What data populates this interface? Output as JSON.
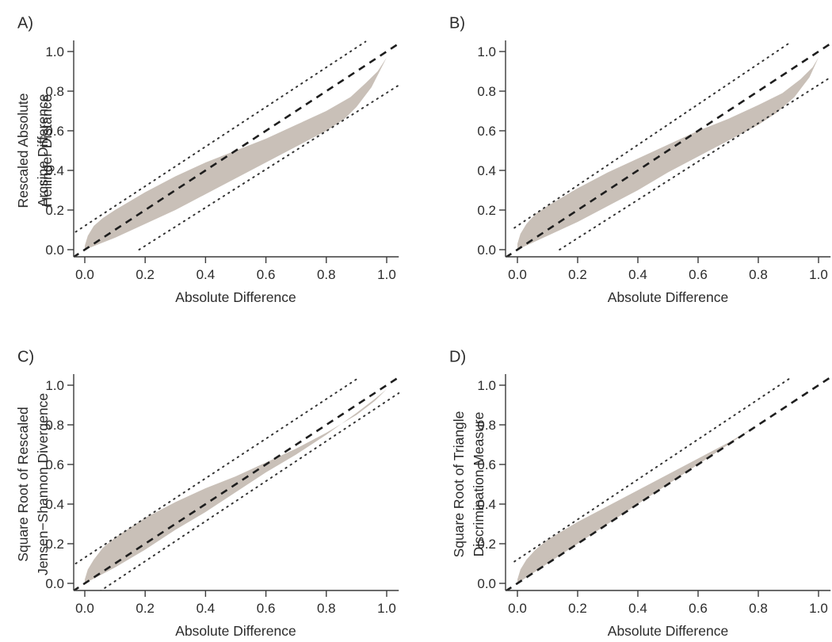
{
  "chart_data": [
    {
      "panel": "A)",
      "type": "area",
      "xlabel": "Absolute Difference",
      "ylabel_lines": [
        "Rescaled Absolute",
        "Arcsine Difference"
      ],
      "xlim": [
        -0.04,
        1.04
      ],
      "ylim": [
        -0.04,
        1.04
      ],
      "xticks": [
        "0.0",
        "0.2",
        "0.4",
        "0.6",
        "0.8",
        "1.0"
      ],
      "yticks": [
        "0.0",
        "0.2",
        "0.4",
        "0.6",
        "0.8",
        "1.0"
      ],
      "band_upper": [
        [
          0,
          0.02
        ],
        [
          0.01,
          0.07
        ],
        [
          0.03,
          0.12
        ],
        [
          0.06,
          0.16
        ],
        [
          0.1,
          0.2
        ],
        [
          0.2,
          0.29
        ],
        [
          0.3,
          0.37
        ],
        [
          0.4,
          0.44
        ],
        [
          0.5,
          0.5
        ],
        [
          0.6,
          0.56
        ],
        [
          0.7,
          0.63
        ],
        [
          0.8,
          0.7
        ],
        [
          0.88,
          0.77
        ],
        [
          0.93,
          0.84
        ],
        [
          0.97,
          0.9
        ],
        [
          1.0,
          0.97
        ]
      ],
      "band_lower": [
        [
          0,
          0
        ],
        [
          0.1,
          0.06
        ],
        [
          0.2,
          0.13
        ],
        [
          0.3,
          0.2
        ],
        [
          0.4,
          0.28
        ],
        [
          0.5,
          0.36
        ],
        [
          0.6,
          0.44
        ],
        [
          0.7,
          0.52
        ],
        [
          0.8,
          0.6
        ],
        [
          0.86,
          0.66
        ],
        [
          0.9,
          0.72
        ],
        [
          0.95,
          0.82
        ],
        [
          1.0,
          0.97
        ]
      ],
      "identity_line": {
        "x": [
          -0.04,
          1.04
        ],
        "y": [
          -0.04,
          1.04
        ]
      },
      "upper_bound": {
        "x": [
          -0.03,
          0.93
        ],
        "y": [
          0.09,
          1.05
        ]
      },
      "lower_bound": {
        "x": [
          0.18,
          1.04
        ],
        "y": [
          0.0,
          0.83
        ]
      }
    },
    {
      "panel": "B)",
      "type": "area",
      "xlabel": "Absolute Difference",
      "ylabel_lines": [
        "Hellinger Distance"
      ],
      "xlim": [
        -0.04,
        1.04
      ],
      "ylim": [
        -0.04,
        1.04
      ],
      "xticks": [
        "0.0",
        "0.2",
        "0.4",
        "0.6",
        "0.8",
        "1.0"
      ],
      "yticks": [
        "0.0",
        "0.2",
        "0.4",
        "0.6",
        "0.8",
        "1.0"
      ],
      "band_upper": [
        [
          0,
          0.03
        ],
        [
          0.01,
          0.08
        ],
        [
          0.03,
          0.13
        ],
        [
          0.06,
          0.18
        ],
        [
          0.1,
          0.22
        ],
        [
          0.2,
          0.31
        ],
        [
          0.3,
          0.39
        ],
        [
          0.4,
          0.46
        ],
        [
          0.5,
          0.53
        ],
        [
          0.6,
          0.6
        ],
        [
          0.7,
          0.66
        ],
        [
          0.8,
          0.73
        ],
        [
          0.88,
          0.79
        ],
        [
          0.94,
          0.86
        ],
        [
          0.98,
          0.92
        ],
        [
          1.0,
          0.97
        ]
      ],
      "band_lower": [
        [
          0,
          0
        ],
        [
          0.1,
          0.07
        ],
        [
          0.2,
          0.14
        ],
        [
          0.3,
          0.22
        ],
        [
          0.4,
          0.3
        ],
        [
          0.5,
          0.39
        ],
        [
          0.6,
          0.47
        ],
        [
          0.7,
          0.55
        ],
        [
          0.8,
          0.63
        ],
        [
          0.86,
          0.69
        ],
        [
          0.92,
          0.77
        ],
        [
          0.97,
          0.87
        ],
        [
          1.0,
          0.97
        ]
      ],
      "identity_line": {
        "x": [
          -0.04,
          1.04
        ],
        "y": [
          -0.04,
          1.04
        ]
      },
      "upper_bound": {
        "x": [
          -0.01,
          0.91
        ],
        "y": [
          0.11,
          1.05
        ]
      },
      "lower_bound": {
        "x": [
          0.14,
          1.04
        ],
        "y": [
          0.0,
          0.87
        ]
      }
    },
    {
      "panel": "C)",
      "type": "area",
      "xlabel": "Absolute Difference",
      "ylabel_lines": [
        "Square Root of Rescaled",
        "Jensen−Shannon Divergence"
      ],
      "xlim": [
        -0.04,
        1.04
      ],
      "ylim": [
        -0.04,
        1.04
      ],
      "xticks": [
        "0.0",
        "0.2",
        "0.4",
        "0.6",
        "0.8",
        "1.0"
      ],
      "yticks": [
        "0.0",
        "0.2",
        "0.4",
        "0.6",
        "0.8",
        "1.0"
      ],
      "band_upper": [
        [
          0,
          0.02
        ],
        [
          0.01,
          0.07
        ],
        [
          0.03,
          0.12
        ],
        [
          0.06,
          0.18
        ],
        [
          0.1,
          0.23
        ],
        [
          0.2,
          0.33
        ],
        [
          0.3,
          0.41
        ],
        [
          0.4,
          0.48
        ],
        [
          0.5,
          0.54
        ],
        [
          0.6,
          0.61
        ],
        [
          0.7,
          0.68
        ],
        [
          0.8,
          0.76
        ],
        [
          0.9,
          0.85
        ],
        [
          0.96,
          0.92
        ],
        [
          1.0,
          0.98
        ]
      ],
      "band_lower": [
        [
          0,
          0
        ],
        [
          0.1,
          0.08
        ],
        [
          0.2,
          0.17
        ],
        [
          0.3,
          0.27
        ],
        [
          0.4,
          0.36
        ],
        [
          0.5,
          0.46
        ],
        [
          0.6,
          0.56
        ],
        [
          0.7,
          0.65
        ],
        [
          0.8,
          0.75
        ],
        [
          0.9,
          0.86
        ],
        [
          0.96,
          0.93
        ],
        [
          1.0,
          0.98
        ]
      ],
      "identity_line": {
        "x": [
          -0.04,
          1.04
        ],
        "y": [
          -0.04,
          1.04
        ]
      },
      "upper_bound": {
        "x": [
          -0.03,
          0.91
        ],
        "y": [
          0.1,
          1.04
        ]
      },
      "lower_bound": {
        "x": [
          0.05,
          1.04
        ],
        "y": [
          -0.04,
          0.96
        ]
      }
    },
    {
      "panel": "D)",
      "type": "area",
      "xlabel": "Absolute Difference",
      "ylabel_lines": [
        "Square Root of Triangle",
        "Discrimination Measure"
      ],
      "xlim": [
        -0.04,
        1.04
      ],
      "ylim": [
        -0.04,
        1.04
      ],
      "xticks": [
        "0.0",
        "0.2",
        "0.4",
        "0.6",
        "0.8",
        "1.0"
      ],
      "yticks": [
        "0.0",
        "0.2",
        "0.4",
        "0.6",
        "0.8",
        "1.0"
      ],
      "band_upper": [
        [
          0,
          0.02
        ],
        [
          0.01,
          0.07
        ],
        [
          0.03,
          0.12
        ],
        [
          0.06,
          0.17
        ],
        [
          0.1,
          0.22
        ],
        [
          0.2,
          0.31
        ],
        [
          0.3,
          0.39
        ],
        [
          0.4,
          0.47
        ],
        [
          0.5,
          0.55
        ],
        [
          0.6,
          0.63
        ],
        [
          0.7,
          0.71
        ],
        [
          0.8,
          0.8
        ],
        [
          0.85,
          0.85
        ]
      ],
      "band_lower": [
        [
          0,
          0
        ],
        [
          0.2,
          0.2
        ],
        [
          0.4,
          0.4
        ],
        [
          0.6,
          0.6
        ],
        [
          0.8,
          0.8
        ],
        [
          0.85,
          0.85
        ]
      ],
      "identity_line": {
        "x": [
          -0.04,
          1.04
        ],
        "y": [
          -0.04,
          1.04
        ]
      },
      "upper_bound": {
        "x": [
          -0.01,
          0.91
        ],
        "y": [
          0.11,
          1.04
        ]
      },
      "lower_bound": null
    }
  ]
}
